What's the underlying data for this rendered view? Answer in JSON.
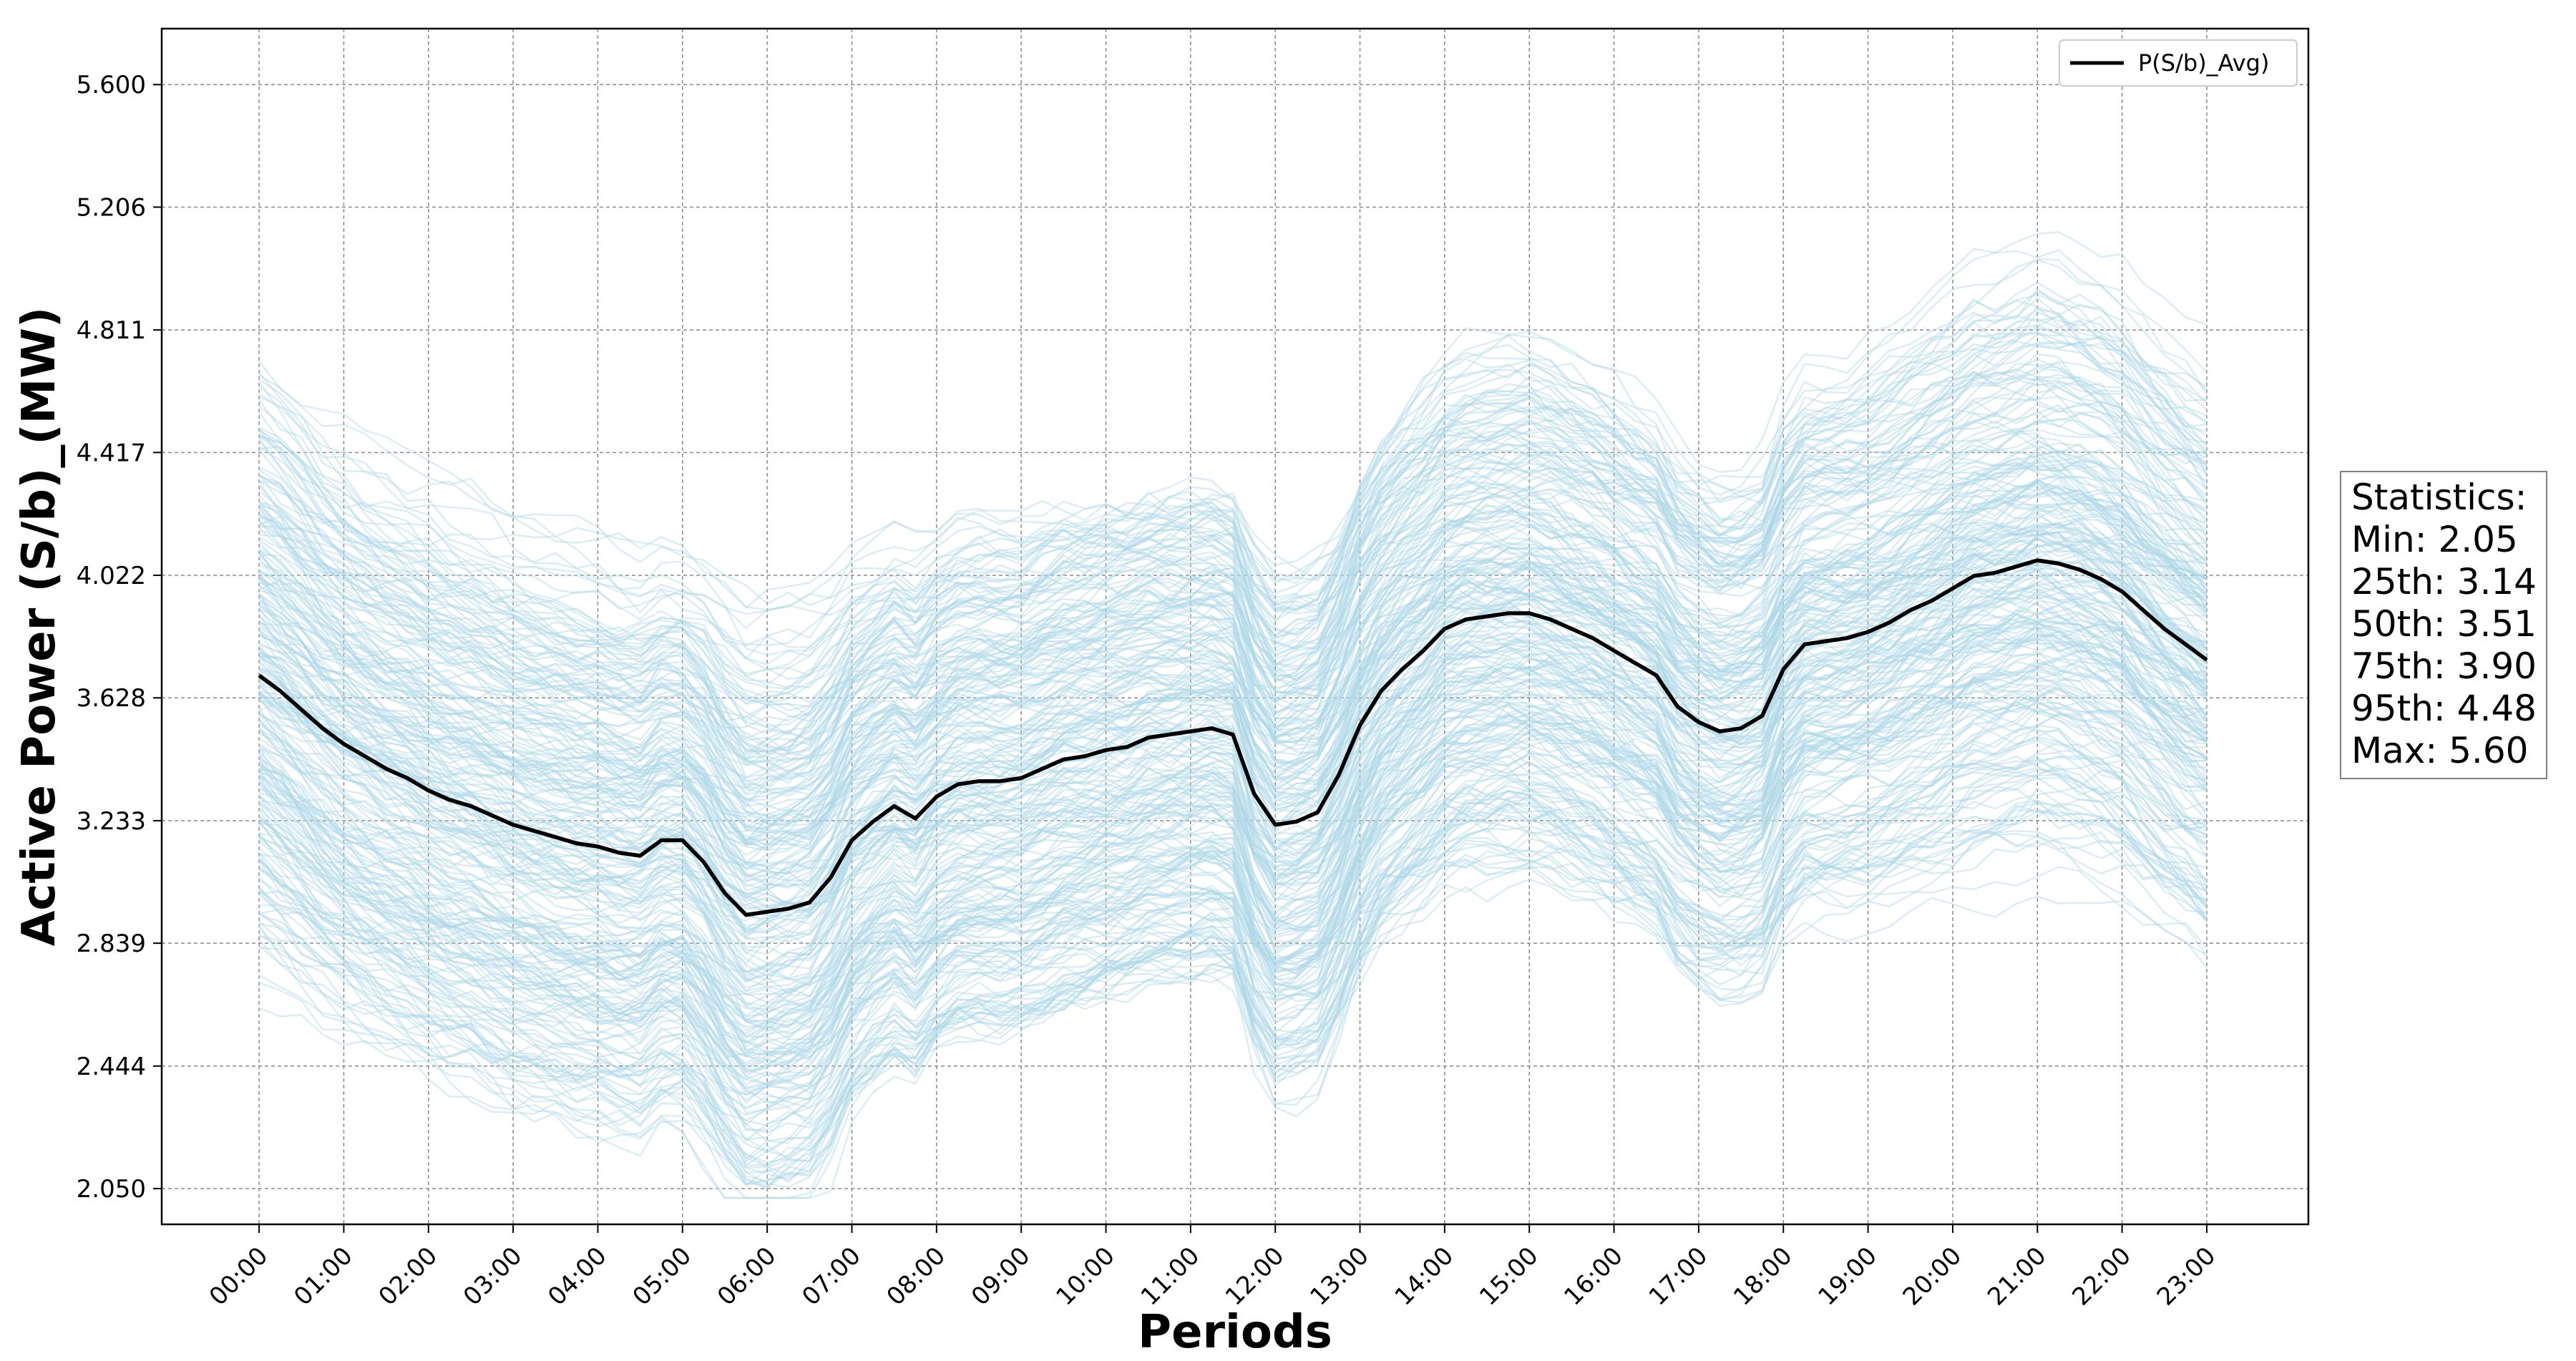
{
  "chart_data": {
    "type": "line",
    "xlabel": "Periods",
    "ylabel": "Active Power (S/b)_(MW)",
    "x_ticks": [
      "00:00",
      "01:00",
      "02:00",
      "03:00",
      "04:00",
      "05:00",
      "06:00",
      "07:00",
      "08:00",
      "09:00",
      "10:00",
      "11:00",
      "12:00",
      "13:00",
      "14:00",
      "15:00",
      "16:00",
      "17:00",
      "18:00",
      "19:00",
      "20:00",
      "21:00",
      "22:00",
      "23:00"
    ],
    "y_ticks": [
      "2.050",
      "2.444",
      "2.839",
      "3.233",
      "3.628",
      "4.022",
      "4.417",
      "4.811",
      "5.206",
      "5.600"
    ],
    "xlim": [
      -1.15,
      24.2
    ],
    "ylim": [
      1.935,
      5.78
    ],
    "grid": true,
    "legend_position": "top-right",
    "background_series": {
      "description": "hundreds of individual daily profiles drawn in light blue",
      "color": "#add8e6"
    },
    "series": [
      {
        "name": "P(S/b)_Avg)",
        "color": "#000000",
        "x": [
          0,
          0.25,
          0.5,
          0.75,
          1,
          1.25,
          1.5,
          1.75,
          2,
          2.25,
          2.5,
          2.75,
          3,
          3.25,
          3.5,
          3.75,
          4,
          4.25,
          4.5,
          4.75,
          5,
          5.25,
          5.5,
          5.75,
          6,
          6.25,
          6.5,
          6.75,
          7,
          7.25,
          7.5,
          7.75,
          8,
          8.25,
          8.5,
          8.75,
          9,
          9.25,
          9.5,
          9.75,
          10,
          10.25,
          10.5,
          10.75,
          11,
          11.25,
          11.5,
          11.75,
          12,
          12.25,
          12.5,
          12.75,
          13,
          13.25,
          13.5,
          13.75,
          14,
          14.25,
          14.5,
          14.75,
          15,
          15.25,
          15.5,
          15.75,
          16,
          16.25,
          16.5,
          16.75,
          17,
          17.25,
          17.5,
          17.75,
          18,
          18.25,
          18.5,
          18.75,
          19,
          19.25,
          19.5,
          19.75,
          20,
          20.25,
          20.5,
          20.75,
          21,
          21.25,
          21.5,
          21.75,
          22,
          22.25,
          22.5,
          22.75,
          23
        ],
        "y": [
          3.7,
          3.65,
          3.59,
          3.53,
          3.48,
          3.44,
          3.4,
          3.37,
          3.33,
          3.3,
          3.28,
          3.25,
          3.22,
          3.2,
          3.18,
          3.16,
          3.15,
          3.13,
          3.12,
          3.17,
          3.17,
          3.1,
          3.0,
          2.93,
          2.94,
          2.95,
          2.97,
          3.05,
          3.17,
          3.23,
          3.28,
          3.24,
          3.31,
          3.35,
          3.36,
          3.36,
          3.37,
          3.4,
          3.43,
          3.44,
          3.46,
          3.47,
          3.5,
          3.51,
          3.52,
          3.53,
          3.51,
          3.32,
          3.22,
          3.23,
          3.26,
          3.38,
          3.54,
          3.65,
          3.72,
          3.78,
          3.85,
          3.88,
          3.89,
          3.9,
          3.9,
          3.88,
          3.85,
          3.82,
          3.78,
          3.74,
          3.7,
          3.6,
          3.55,
          3.52,
          3.53,
          3.57,
          3.72,
          3.8,
          3.81,
          3.82,
          3.84,
          3.87,
          3.91,
          3.94,
          3.98,
          4.02,
          4.03,
          4.05,
          4.07,
          4.06,
          4.04,
          4.01,
          3.97,
          3.91,
          3.85,
          3.8,
          3.75
        ]
      }
    ]
  },
  "legend": {
    "label": "P(S/b)_Avg)"
  },
  "statistics": {
    "title": "Statistics:",
    "min": "Min: 2.05",
    "p25": "25th: 3.14",
    "p50": "50th: 3.51",
    "p75": "75th: 3.90",
    "p95": "95th: 4.48",
    "max": "Max: 5.60"
  }
}
